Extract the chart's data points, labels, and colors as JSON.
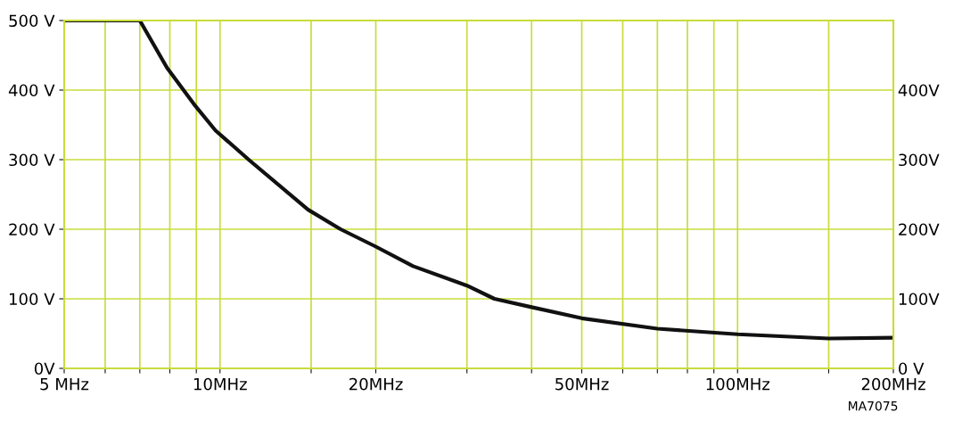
{
  "chart_data": {
    "type": "line",
    "log": "x",
    "x": [
      5,
      7,
      7.9,
      8.9,
      9.8,
      11.4,
      14.8,
      17.1,
      20,
      23.6,
      30,
      33.9,
      40,
      50,
      70,
      100,
      150,
      200
    ],
    "series": [
      {
        "color": "#111111",
        "values": [
          500,
          500,
          432,
          380,
          342,
          299,
          228,
          200,
          175,
          147,
          119,
          100,
          88,
          72,
          57,
          49,
          43,
          44
        ]
      }
    ],
    "xlim": [
      5,
      200
    ],
    "xticks": [
      {
        "value": 5,
        "label": "5 MHz"
      },
      {
        "value": 6,
        "label": null
      },
      {
        "value": 7,
        "label": null
      },
      {
        "value": 8,
        "label": null
      },
      {
        "value": 9,
        "label": null
      },
      {
        "value": 10,
        "label": "10MHz"
      },
      {
        "value": 15,
        "label": null
      },
      {
        "value": 20,
        "label": "20MHz"
      },
      {
        "value": 30,
        "label": null
      },
      {
        "value": 40,
        "label": null
      },
      {
        "value": 50,
        "label": "50MHz"
      },
      {
        "value": 60,
        "label": null
      },
      {
        "value": 70,
        "label": null
      },
      {
        "value": 80,
        "label": null
      },
      {
        "value": 90,
        "label": null
      },
      {
        "value": 100,
        "label": "100MHz"
      },
      {
        "value": 150,
        "label": null
      },
      {
        "value": 200,
        "label": "200MHz"
      }
    ],
    "ylim": [
      0,
      500
    ],
    "yticks": [
      {
        "value": 0,
        "label": "0V"
      },
      {
        "value": 100,
        "label": "100 V"
      },
      {
        "value": 200,
        "label": "200 V"
      },
      {
        "value": 300,
        "label": "300 V"
      },
      {
        "value": 400,
        "label": "400 V"
      },
      {
        "value": 500,
        "label": "500 V"
      }
    ],
    "y2lim": [
      0,
      500
    ],
    "y2ticks": [
      {
        "value": 0,
        "label": "0 V"
      },
      {
        "value": 100,
        "label": "100V"
      },
      {
        "value": 200,
        "label": "200V"
      },
      {
        "value": 300,
        "label": "300V"
      },
      {
        "value": 400,
        "label": "400V"
      }
    ],
    "grid": true,
    "line_style": "solid",
    "marker": "none",
    "annotations": [
      "MA7075"
    ]
  }
}
